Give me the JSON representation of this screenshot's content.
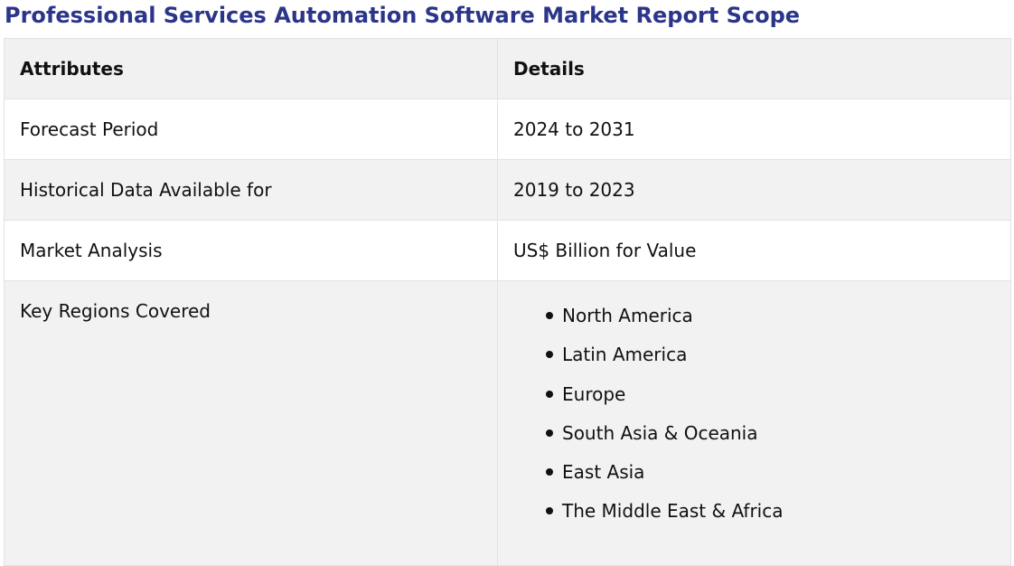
{
  "page_title": "Professional Services Automation Software Market Report Scope",
  "table": {
    "headers": [
      "Attributes",
      "Details"
    ],
    "rows": [
      {
        "attribute": "Forecast Period",
        "detail": "2024 to 2031"
      },
      {
        "attribute": "Historical Data Available for",
        "detail": "2019 to 2023"
      },
      {
        "attribute": "Market Analysis",
        "detail": "US$ Billion for Value"
      }
    ],
    "regions_row": {
      "attribute": "Key Regions Covered",
      "items": [
        "North America",
        "Latin America",
        "Europe",
        "South Asia & Oceania",
        "East Asia",
        "The Middle East & Africa"
      ]
    }
  },
  "colors": {
    "title": "#2b3589",
    "row_alt": "#f2f2f2",
    "border": "#e2e2e2"
  }
}
